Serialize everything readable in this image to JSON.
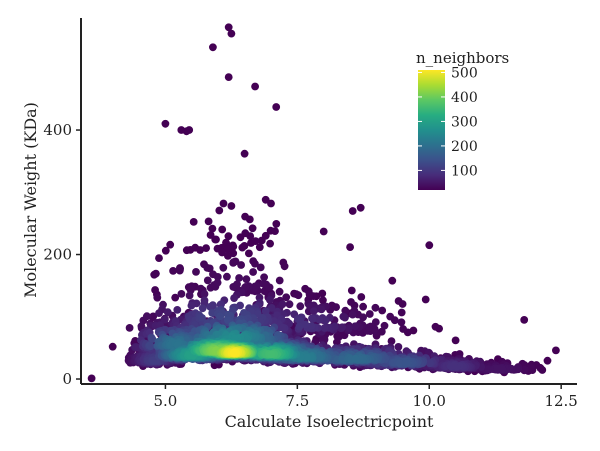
{
  "chart_data": {
    "type": "scatter",
    "title": "",
    "xlabel": "Calculate Isoelectricpoint",
    "ylabel": "Molecular Weight (KDa)",
    "xlim": [
      3.4,
      12.8
    ],
    "ylim": [
      -8,
      580
    ],
    "x_ticks": [
      5.0,
      7.5,
      10.0,
      12.5
    ],
    "x_tick_labels": [
      "5.0",
      "7.5",
      "10.0",
      "12.5"
    ],
    "y_ticks": [
      0,
      200,
      400
    ],
    "y_tick_labels": [
      "0",
      "200",
      "400"
    ],
    "grid": false,
    "colormap": "viridis",
    "legend": {
      "title": "n_neighbors",
      "placement": "top-right",
      "min": 20,
      "max": 510,
      "ticks": [
        100,
        200,
        300,
        400,
        500
      ],
      "tick_labels": [
        "100",
        "200",
        "300",
        "400",
        "500"
      ]
    },
    "points": [
      {
        "x": 3.6,
        "y": 1,
        "n": 5
      },
      {
        "x": 4.0,
        "y": 52,
        "n": 10
      },
      {
        "x": 5.0,
        "y": 410,
        "n": 5
      },
      {
        "x": 5.3,
        "y": 400,
        "n": 5
      },
      {
        "x": 5.45,
        "y": 400,
        "n": 5
      },
      {
        "x": 5.4,
        "y": 398,
        "n": 5
      },
      {
        "x": 5.9,
        "y": 533,
        "n": 5
      },
      {
        "x": 6.2,
        "y": 565,
        "n": 5
      },
      {
        "x": 6.25,
        "y": 555,
        "n": 5
      },
      {
        "x": 6.2,
        "y": 485,
        "n": 5
      },
      {
        "x": 6.7,
        "y": 470,
        "n": 5
      },
      {
        "x": 7.1,
        "y": 437,
        "n": 5
      },
      {
        "x": 6.5,
        "y": 362,
        "n": 5
      },
      {
        "x": 6.1,
        "y": 282,
        "n": 10
      },
      {
        "x": 6.25,
        "y": 278,
        "n": 10
      },
      {
        "x": 6.9,
        "y": 288,
        "n": 10
      },
      {
        "x": 7.0,
        "y": 282,
        "n": 10
      },
      {
        "x": 8.7,
        "y": 275,
        "n": 10
      },
      {
        "x": 8.55,
        "y": 270,
        "n": 10
      },
      {
        "x": 8.0,
        "y": 237,
        "n": 10
      },
      {
        "x": 8.5,
        "y": 212,
        "n": 10
      },
      {
        "x": 10.0,
        "y": 215,
        "n": 10
      },
      {
        "x": 9.3,
        "y": 158,
        "n": 10
      },
      {
        "x": 11.8,
        "y": 95,
        "n": 10
      },
      {
        "x": 12.4,
        "y": 46,
        "n": 10
      },
      {
        "x": 12.1,
        "y": 18,
        "n": 15
      },
      {
        "x": 11.3,
        "y": 32,
        "n": 20
      },
      {
        "x": 10.5,
        "y": 62,
        "n": 15
      },
      {
        "x": 9.7,
        "y": 78,
        "n": 20
      }
    ],
    "density": [
      {
        "x": 6.3,
        "y": 42,
        "sx": 0.55,
        "sy": 16,
        "n": 510
      },
      {
        "x": 6.0,
        "y": 45,
        "sx": 0.75,
        "sy": 20,
        "n": 420
      },
      {
        "x": 7.0,
        "y": 40,
        "sx": 0.7,
        "sy": 18,
        "n": 360
      },
      {
        "x": 5.5,
        "y": 38,
        "sx": 0.6,
        "sy": 18,
        "n": 300
      },
      {
        "x": 6.3,
        "y": 65,
        "sx": 1.0,
        "sy": 28,
        "n": 260
      },
      {
        "x": 7.6,
        "y": 35,
        "sx": 0.8,
        "sy": 17,
        "n": 230
      },
      {
        "x": 5.2,
        "y": 55,
        "sx": 0.6,
        "sy": 26,
        "n": 210
      },
      {
        "x": 8.6,
        "y": 32,
        "sx": 0.9,
        "sy": 16,
        "n": 190
      },
      {
        "x": 9.5,
        "y": 26,
        "sx": 0.7,
        "sy": 14,
        "n": 150
      },
      {
        "x": 6.2,
        "y": 95,
        "sx": 1.1,
        "sy": 32,
        "n": 130
      },
      {
        "x": 4.8,
        "y": 30,
        "sx": 0.35,
        "sy": 15,
        "n": 110
      },
      {
        "x": 10.5,
        "y": 20,
        "sx": 0.5,
        "sy": 10,
        "n": 90
      },
      {
        "x": 7.5,
        "y": 85,
        "sx": 1.0,
        "sy": 30,
        "n": 90
      },
      {
        "x": 11.3,
        "y": 16,
        "sx": 0.55,
        "sy": 8,
        "n": 45
      },
      {
        "x": 6.3,
        "y": 150,
        "sx": 1.1,
        "sy": 42,
        "n": 35
      },
      {
        "x": 8.5,
        "y": 85,
        "sx": 1.0,
        "sy": 36,
        "n": 35
      },
      {
        "x": 6.3,
        "y": 215,
        "sx": 0.8,
        "sy": 30,
        "n": 15
      }
    ]
  }
}
